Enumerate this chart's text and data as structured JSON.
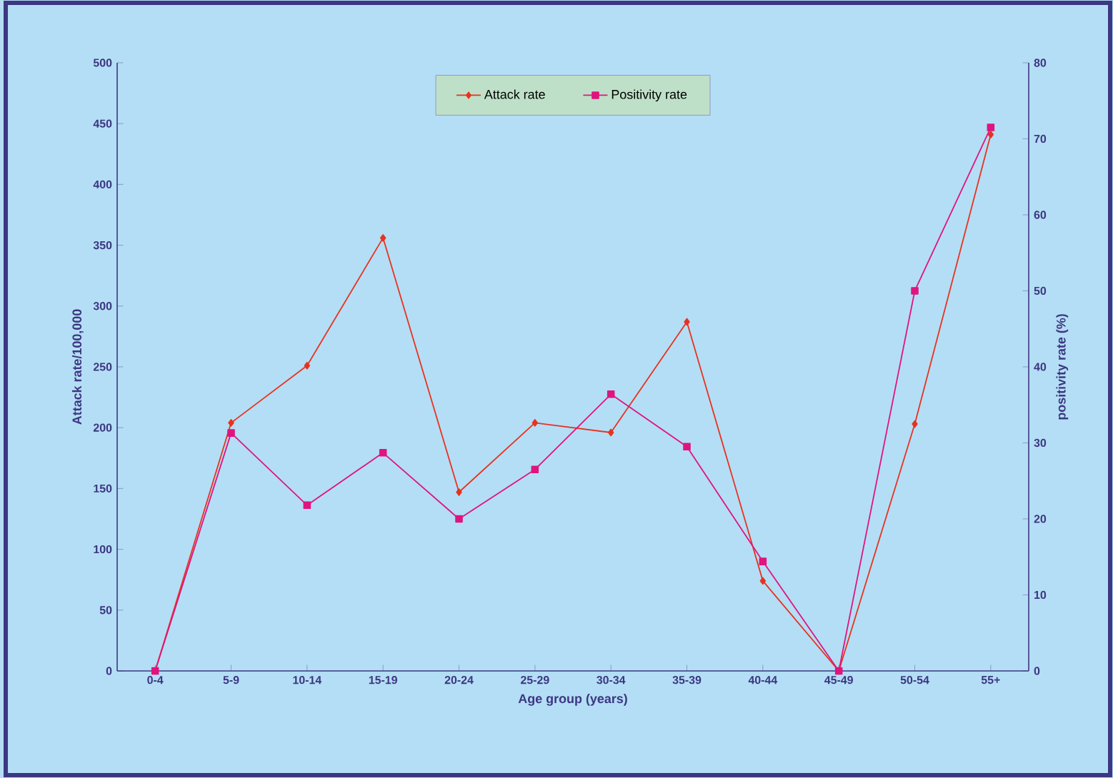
{
  "chart_data": {
    "type": "line",
    "xlabel": "Age group (years)",
    "ylabel": "Attack rate/100,000",
    "y2label": "positivity rate (%)",
    "categories": [
      "0-4",
      "5-9",
      "10-14",
      "15-19",
      "20-24",
      "25-29",
      "30-34",
      "35-39",
      "40-44",
      "45-49",
      "50-54",
      "55+"
    ],
    "series": [
      {
        "name": "Attack rate",
        "color": "#e8321e",
        "marker": "diamond",
        "values": [
          0,
          204,
          251,
          356,
          147,
          204,
          196,
          287,
          74,
          0,
          203,
          441
        ]
      },
      {
        "name": "Positivity rate",
        "color": "#e0147f",
        "marker": "square",
        "axis": "y2",
        "values": [
          0,
          31.3,
          21.8,
          28.7,
          20,
          26.5,
          36.4,
          29.5,
          14.4,
          0,
          50,
          71.5
        ]
      }
    ],
    "ylim": [
      0,
      500
    ],
    "yticks": [
      0,
      50,
      100,
      150,
      200,
      250,
      300,
      350,
      400,
      450,
      500
    ],
    "y2lim": [
      0,
      80
    ],
    "y2ticks": [
      0,
      10,
      20,
      30,
      40,
      50,
      60,
      70,
      80
    ],
    "legend": "top"
  }
}
